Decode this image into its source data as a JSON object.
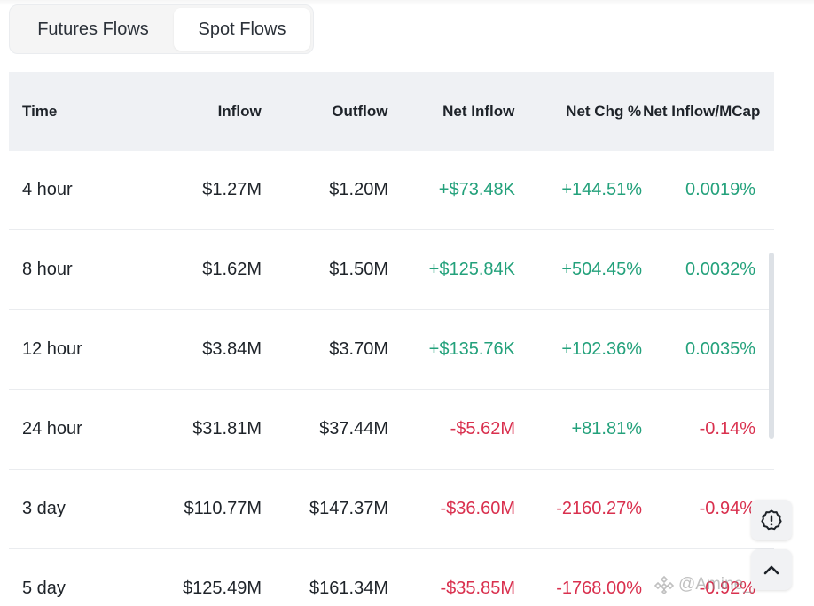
{
  "tabs": [
    {
      "label": "Futures Flows",
      "active": false
    },
    {
      "label": "Spot Flows",
      "active": true
    }
  ],
  "table": {
    "headers": {
      "time": "Time",
      "inflow": "Inflow",
      "outflow": "Outflow",
      "net_inflow": "Net Inflow",
      "net_chg": "Net Chg %",
      "net_mcap": "Net Inflow/MCap"
    },
    "rows": [
      {
        "time": "4 hour",
        "inflow": "$1.27M",
        "outflow": "$1.20M",
        "net_inflow": "+$73.48K",
        "net_chg": "+144.51%",
        "net_mcap": "0.0019%"
      },
      {
        "time": "8 hour",
        "inflow": "$1.62M",
        "outflow": "$1.50M",
        "net_inflow": "+$125.84K",
        "net_chg": "+504.45%",
        "net_mcap": "0.0032%"
      },
      {
        "time": "12 hour",
        "inflow": "$3.84M",
        "outflow": "$3.70M",
        "net_inflow": "+$135.76K",
        "net_chg": "+102.36%",
        "net_mcap": "0.0035%"
      },
      {
        "time": "24 hour",
        "inflow": "$31.81M",
        "outflow": "$37.44M",
        "net_inflow": "-$5.62M",
        "net_chg": "+81.81%",
        "net_mcap": "-0.14%"
      },
      {
        "time": "3 day",
        "inflow": "$110.77M",
        "outflow": "$147.37M",
        "net_inflow": "-$36.60M",
        "net_chg": "-2160.27%",
        "net_mcap": "-0.94%"
      },
      {
        "time": "5 day",
        "inflow": "$125.49M",
        "outflow": "$161.34M",
        "net_inflow": "-$35.85M",
        "net_chg": "-1768.00%",
        "net_mcap": "-0.92%"
      }
    ]
  },
  "colors": {
    "positive": "#23a17b",
    "negative": "#d9304e"
  },
  "watermark": {
    "handle": "@Amine_trx"
  },
  "icons": {
    "feedback": "alert-circle-icon",
    "back_to_top": "chevron-up-icon",
    "watermark_logo": "binance-diamond-icon"
  }
}
